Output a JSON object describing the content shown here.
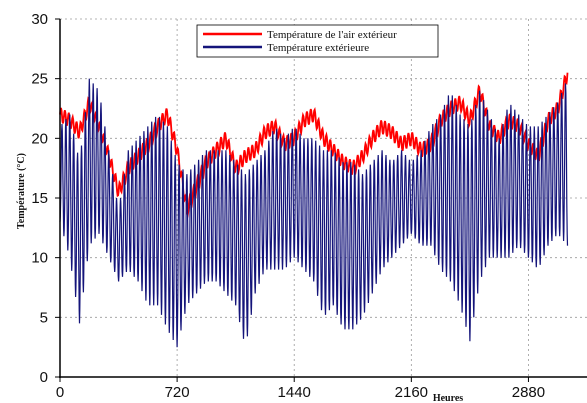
{
  "chart_data": {
    "type": "line",
    "title": "",
    "xlabel": "Heures",
    "ylabel": "Température (°C)",
    "xlim": [
      0,
      3240
    ],
    "ylim": [
      0,
      30
    ],
    "x_ticks": [
      0,
      720,
      1440,
      2160,
      2880
    ],
    "y_ticks": [
      0,
      5,
      10,
      15,
      20,
      25,
      30
    ],
    "grid": true,
    "legend_position": "top-center",
    "series": [
      {
        "name": "Température de l'air extérieur",
        "color": "#ff0000",
        "x": [
          0,
          60,
          120,
          180,
          240,
          300,
          360,
          420,
          480,
          540,
          600,
          660,
          720,
          780,
          840,
          900,
          960,
          1020,
          1080,
          1140,
          1200,
          1260,
          1320,
          1380,
          1440,
          1500,
          1560,
          1620,
          1680,
          1740,
          1800,
          1860,
          1920,
          1980,
          2040,
          2100,
          2160,
          2220,
          2280,
          2340,
          2400,
          2460,
          2520,
          2580,
          2640,
          2700,
          2760,
          2820,
          2880,
          2940,
          3000,
          3060,
          3120
        ],
        "values": [
          22,
          21.5,
          20.5,
          23,
          21,
          18.5,
          15.5,
          17.5,
          18.5,
          19.5,
          21,
          22,
          19,
          14,
          16,
          18,
          19,
          20,
          17.5,
          18.5,
          19,
          20.5,
          21,
          19.5,
          20,
          21.5,
          22,
          20,
          19,
          18,
          17.5,
          18.5,
          20,
          21,
          20.5,
          19.5,
          20,
          19,
          19.5,
          21.5,
          22.5,
          23,
          21.5,
          24,
          21,
          20,
          21.5,
          21,
          19.5,
          18.5,
          21.5,
          22.5,
          25.5
        ]
      },
      {
        "name": "Température extérieure",
        "color": "#14147a",
        "x": [
          0,
          60,
          120,
          180,
          240,
          300,
          360,
          420,
          480,
          540,
          600,
          660,
          720,
          780,
          840,
          900,
          960,
          1020,
          1080,
          1140,
          1200,
          1260,
          1320,
          1380,
          1440,
          1500,
          1560,
          1620,
          1680,
          1740,
          1800,
          1860,
          1920,
          1980,
          2040,
          2100,
          2160,
          2220,
          2280,
          2340,
          2400,
          2460,
          2520,
          2580,
          2640,
          2700,
          2760,
          2820,
          2880,
          2940,
          3000,
          3060,
          3120
        ],
        "max": [
          21,
          22,
          18,
          25,
          24,
          19,
          14,
          19,
          20,
          21,
          22,
          21,
          18,
          17,
          18,
          19,
          19,
          19,
          18,
          17,
          18,
          19,
          21,
          20,
          21,
          20,
          20,
          19,
          19,
          18,
          18,
          17,
          18,
          19,
          18,
          19,
          18,
          19,
          21,
          22,
          24,
          22,
          21,
          24,
          22,
          20,
          23,
          22,
          21,
          21,
          22,
          23,
          25
        ],
        "min": [
          13,
          10,
          4.5,
          11,
          12,
          10,
          8,
          9,
          8,
          6,
          6,
          4,
          2.5,
          6,
          7,
          8,
          8,
          7,
          6,
          2.5,
          7,
          9,
          9,
          9,
          10,
          9,
          8,
          5,
          6,
          4,
          4,
          5,
          7,
          9,
          10,
          11,
          12,
          11,
          11,
          9,
          8,
          6,
          3,
          8,
          10,
          10,
          10,
          11,
          10,
          9,
          11,
          12,
          11
        ]
      }
    ]
  }
}
